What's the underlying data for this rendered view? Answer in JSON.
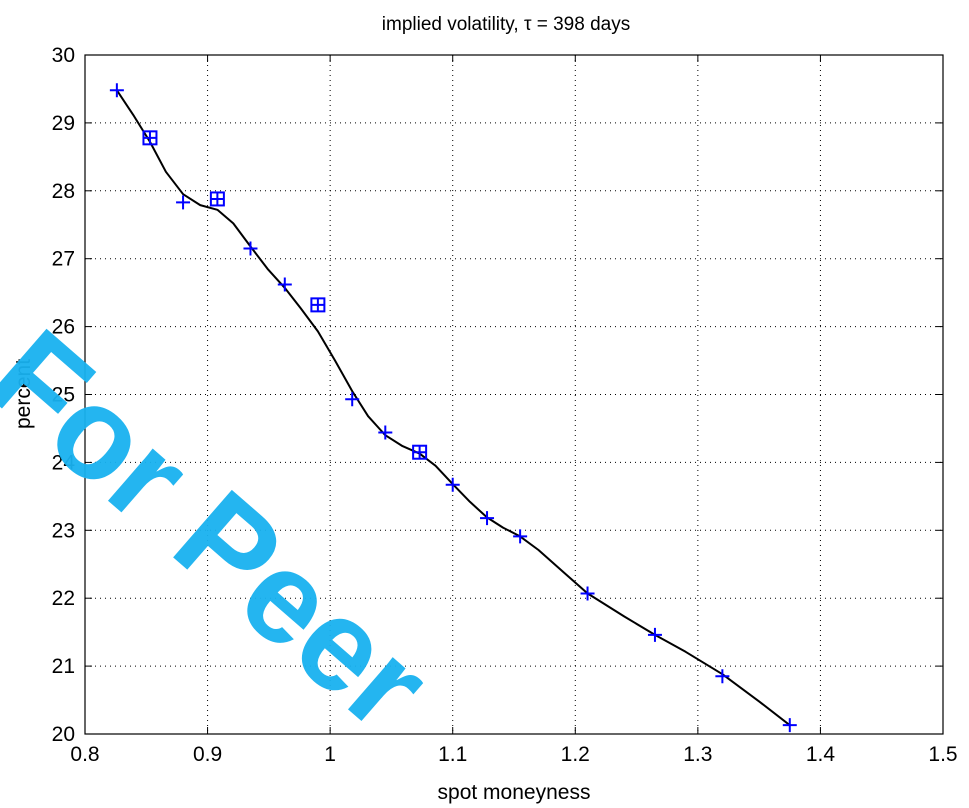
{
  "chart_data": {
    "type": "scatter",
    "title": "implied volatility,  τ = 398 days",
    "xlabel": "spot moneyness",
    "ylabel": "percent",
    "xlim": [
      0.8,
      1.5
    ],
    "ylim": [
      20,
      30
    ],
    "xticks": [
      0.8,
      0.9,
      1,
      1.1,
      1.2,
      1.3,
      1.4,
      1.5
    ],
    "yticks": [
      20,
      21,
      22,
      23,
      24,
      25,
      26,
      27,
      28,
      29,
      30
    ],
    "xtick_labels": [
      "0.8",
      "0.9",
      "1",
      "1.1",
      "1.2",
      "1.3",
      "1.4",
      "1.5"
    ],
    "ytick_labels": [
      "20",
      "21",
      "22",
      "23",
      "24",
      "25",
      "26",
      "27",
      "28",
      "29",
      "30"
    ],
    "grid": true,
    "series": [
      {
        "marker": "plus",
        "color": "#0000ff",
        "x": [
          0.826,
          0.853,
          0.88,
          0.908,
          0.935,
          0.963,
          0.99,
          1.018,
          1.045,
          1.073,
          1.1,
          1.128,
          1.155,
          1.21,
          1.265,
          1.32,
          1.375
        ],
        "y": [
          29.48,
          28.78,
          27.83,
          27.88,
          27.15,
          26.62,
          26.32,
          24.93,
          24.44,
          24.15,
          23.67,
          23.18,
          22.91,
          22.07,
          21.46,
          20.85,
          20.13
        ]
      },
      {
        "marker": "square",
        "color": "#0000ff",
        "x": [
          0.853,
          0.908,
          0.99,
          1.073
        ],
        "y": [
          28.78,
          27.88,
          26.32,
          24.15
        ]
      },
      {
        "marker": "line",
        "color": "#000000",
        "x": [
          0.826,
          0.84,
          0.853,
          0.866,
          0.88,
          0.894,
          0.908,
          0.921,
          0.935,
          0.949,
          0.963,
          0.976,
          0.99,
          1.004,
          1.018,
          1.031,
          1.045,
          1.059,
          1.073,
          1.086,
          1.1,
          1.114,
          1.128,
          1.141,
          1.155,
          1.17,
          1.19,
          1.21,
          1.24,
          1.265,
          1.29,
          1.32,
          1.35,
          1.375
        ],
        "y": [
          29.48,
          29.1,
          28.72,
          28.28,
          27.95,
          27.79,
          27.72,
          27.52,
          27.18,
          26.85,
          26.57,
          26.27,
          25.93,
          25.5,
          25.05,
          24.68,
          24.4,
          24.24,
          24.13,
          23.95,
          23.68,
          23.42,
          23.19,
          23.04,
          22.91,
          22.71,
          22.39,
          22.07,
          21.73,
          21.46,
          21.21,
          20.88,
          20.48,
          20.13
        ]
      }
    ]
  },
  "watermark": "For Peer"
}
